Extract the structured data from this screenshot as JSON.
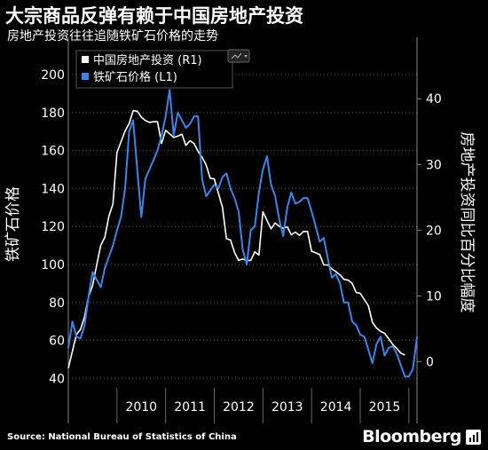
{
  "header": {
    "title": "大宗商品反弹有赖于中国房地产投资",
    "subtitle": "房地产投资往往追随铁矿石价格的走势"
  },
  "footer": {
    "source": "Source: National Bureau of Statistics of China",
    "brand": "Bloomberg"
  },
  "icons": {
    "menu": "chart-menu-icon",
    "brand": "bloomberg-logo-icon"
  },
  "colors": {
    "background": "#000000",
    "series_property": "#ffffff",
    "series_iron": "#3a86e8",
    "grid": "#555555"
  },
  "chart_data": {
    "type": "line",
    "title": "大宗商品反弹有赖于中国房地产投资",
    "subtitle": "房地产投资往往追随铁矿石价格的走势",
    "ylabel_left": "铁矿石价格",
    "ylabel_right": "房地产投资同比百分比幅度",
    "x_ticks": [
      "2010",
      "2011",
      "2012",
      "2013",
      "2014",
      "2015"
    ],
    "xlim": [
      "2009-01",
      "2016-03"
    ],
    "y_left_ticks": [
      40,
      60,
      80,
      100,
      120,
      140,
      160,
      180,
      200
    ],
    "y_left_lim": [
      35,
      215
    ],
    "y_right_ticks": [
      0,
      10,
      20,
      30,
      40
    ],
    "y_right_lim": [
      -4,
      48
    ],
    "grid": "horizontal dotted",
    "legend": {
      "position": "top-left",
      "entries": [
        "中国房地产投资 (R1)",
        "铁矿石价格 (L1)"
      ]
    },
    "series": [
      {
        "name": "中国房地产投资 (R1)",
        "axis": "right",
        "color": "#ffffff",
        "points": [
          [
            "2009-01",
            -1.0
          ],
          [
            "2009-03",
            4.1
          ],
          [
            "2009-04",
            4.9
          ],
          [
            "2009-05",
            6.8
          ],
          [
            "2009-06",
            9.9
          ],
          [
            "2009-07",
            11.6
          ],
          [
            "2009-08",
            14.7
          ],
          [
            "2009-09",
            17.7
          ],
          [
            "2009-10",
            18.9
          ],
          [
            "2009-11",
            22.1
          ],
          [
            "2009-12",
            24.0
          ],
          [
            "2010-01",
            31.8
          ],
          [
            "2010-03",
            35.1
          ],
          [
            "2010-04",
            36.2
          ],
          [
            "2010-05",
            38.2
          ],
          [
            "2010-06",
            38.1
          ],
          [
            "2010-07",
            37.2
          ],
          [
            "2010-08",
            36.7
          ],
          [
            "2010-09",
            36.4
          ],
          [
            "2010-10",
            36.5
          ],
          [
            "2010-11",
            36.5
          ],
          [
            "2010-12",
            33.2
          ],
          [
            "2011-01",
            35.2
          ],
          [
            "2011-03",
            34.1
          ],
          [
            "2011-04",
            34.3
          ],
          [
            "2011-05",
            34.6
          ],
          [
            "2011-06",
            32.9
          ],
          [
            "2011-07",
            33.6
          ],
          [
            "2011-08",
            33.2
          ],
          [
            "2011-09",
            32.0
          ],
          [
            "2011-10",
            31.1
          ],
          [
            "2011-11",
            29.9
          ],
          [
            "2011-12",
            27.9
          ],
          [
            "2012-01",
            27.8
          ],
          [
            "2012-03",
            23.5
          ],
          [
            "2012-04",
            18.7
          ],
          [
            "2012-05",
            18.5
          ],
          [
            "2012-06",
            16.6
          ],
          [
            "2012-07",
            15.4
          ],
          [
            "2012-08",
            15.6
          ],
          [
            "2012-09",
            15.4
          ],
          [
            "2012-10",
            15.4
          ],
          [
            "2012-11",
            16.7
          ],
          [
            "2012-12",
            16.2
          ],
          [
            "2013-01",
            22.8
          ],
          [
            "2013-03",
            20.2
          ],
          [
            "2013-04",
            21.1
          ],
          [
            "2013-05",
            20.6
          ],
          [
            "2013-06",
            20.3
          ],
          [
            "2013-07",
            20.5
          ],
          [
            "2013-08",
            19.3
          ],
          [
            "2013-09",
            19.7
          ],
          [
            "2013-10",
            19.2
          ],
          [
            "2013-11",
            19.8
          ],
          [
            "2013-12",
            19.8
          ],
          [
            "2014-01",
            16.8
          ],
          [
            "2014-03",
            16.3
          ],
          [
            "2014-04",
            14.7
          ],
          [
            "2014-05",
            14.7
          ],
          [
            "2014-06",
            14.1
          ],
          [
            "2014-07",
            13.7
          ],
          [
            "2014-08",
            13.2
          ],
          [
            "2014-09",
            12.5
          ],
          [
            "2014-10",
            12.4
          ],
          [
            "2014-11",
            11.9
          ],
          [
            "2014-12",
            10.5
          ],
          [
            "2015-01",
            10.4
          ],
          [
            "2015-03",
            8.5
          ],
          [
            "2015-04",
            6.0
          ],
          [
            "2015-05",
            5.1
          ],
          [
            "2015-06",
            4.6
          ],
          [
            "2015-07",
            4.3
          ],
          [
            "2015-08",
            3.5
          ],
          [
            "2015-09",
            2.6
          ],
          [
            "2015-10",
            2.0
          ],
          [
            "2015-11",
            1.3
          ],
          [
            "2015-12",
            1.0
          ]
        ]
      },
      {
        "name": "铁矿石价格 (L1)",
        "axis": "left",
        "color": "#3a86e8",
        "points": [
          [
            "2009-01",
            56
          ],
          [
            "2009-02",
            70
          ],
          [
            "2009-03",
            62
          ],
          [
            "2009-04",
            61
          ],
          [
            "2009-05",
            68
          ],
          [
            "2009-06",
            83
          ],
          [
            "2009-07",
            96
          ],
          [
            "2009-08",
            92
          ],
          [
            "2009-09",
            88
          ],
          [
            "2009-10",
            98
          ],
          [
            "2009-11",
            104
          ],
          [
            "2009-12",
            110
          ],
          [
            "2010-01",
            118
          ],
          [
            "2010-02",
            125
          ],
          [
            "2010-03",
            140
          ],
          [
            "2010-04",
            170
          ],
          [
            "2010-05",
            176
          ],
          [
            "2010-06",
            150
          ],
          [
            "2010-07",
            125
          ],
          [
            "2010-08",
            145
          ],
          [
            "2010-09",
            150
          ],
          [
            "2010-10",
            155
          ],
          [
            "2010-11",
            160
          ],
          [
            "2010-12",
            168
          ],
          [
            "2011-01",
            178
          ],
          [
            "2011-02",
            192
          ],
          [
            "2011-03",
            168
          ],
          [
            "2011-04",
            180
          ],
          [
            "2011-05",
            176
          ],
          [
            "2011-06",
            172
          ],
          [
            "2011-07",
            174
          ],
          [
            "2011-08",
            178
          ],
          [
            "2011-09",
            178
          ],
          [
            "2011-10",
            145
          ],
          [
            "2011-11",
            136
          ],
          [
            "2011-12",
            139
          ],
          [
            "2012-01",
            142
          ],
          [
            "2012-02",
            140
          ],
          [
            "2012-03",
            146
          ],
          [
            "2012-04",
            148
          ],
          [
            "2012-05",
            140
          ],
          [
            "2012-06",
            135
          ],
          [
            "2012-07",
            128
          ],
          [
            "2012-08",
            108
          ],
          [
            "2012-09",
            100
          ],
          [
            "2012-10",
            118
          ],
          [
            "2012-11",
            120
          ],
          [
            "2012-12",
            138
          ],
          [
            "2013-01",
            150
          ],
          [
            "2013-02",
            157
          ],
          [
            "2013-03",
            142
          ],
          [
            "2013-04",
            136
          ],
          [
            "2013-05",
            124
          ],
          [
            "2013-06",
            115
          ],
          [
            "2013-07",
            130
          ],
          [
            "2013-08",
            138
          ],
          [
            "2013-09",
            132
          ],
          [
            "2013-10",
            133
          ],
          [
            "2013-11",
            135
          ],
          [
            "2013-12",
            135
          ],
          [
            "2014-01",
            128
          ],
          [
            "2014-02",
            120
          ],
          [
            "2014-03",
            112
          ],
          [
            "2014-04",
            114
          ],
          [
            "2014-05",
            103
          ],
          [
            "2014-06",
            93
          ],
          [
            "2014-07",
            95
          ],
          [
            "2014-08",
            90
          ],
          [
            "2014-09",
            80
          ],
          [
            "2014-10",
            80
          ],
          [
            "2014-11",
            70
          ],
          [
            "2014-12",
            68
          ],
          [
            "2015-01",
            63
          ],
          [
            "2015-02",
            62
          ],
          [
            "2015-03",
            55
          ],
          [
            "2015-04",
            48
          ],
          [
            "2015-05",
            58
          ],
          [
            "2015-06",
            62
          ],
          [
            "2015-07",
            52
          ],
          [
            "2015-08",
            56
          ],
          [
            "2015-09",
            57
          ],
          [
            "2015-10",
            53
          ],
          [
            "2015-11",
            47
          ],
          [
            "2015-12",
            41
          ],
          [
            "2016-01",
            41
          ],
          [
            "2016-02",
            45
          ],
          [
            "2016-03",
            62
          ]
        ]
      }
    ]
  }
}
